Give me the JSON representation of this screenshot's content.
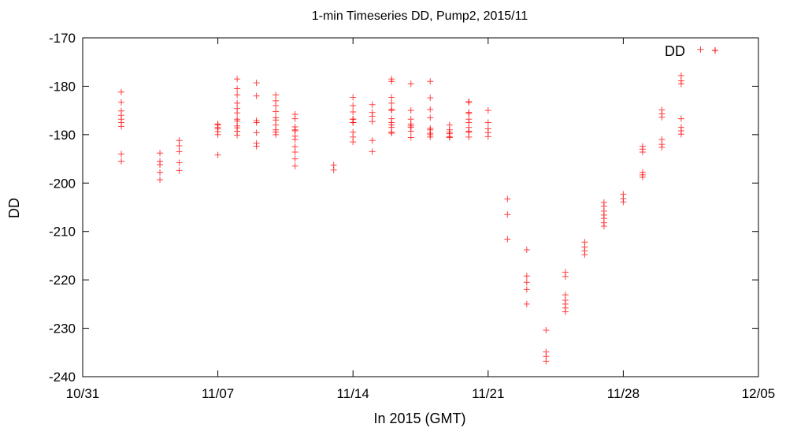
{
  "chart_data": {
    "type": "scatter",
    "title": "1-min Timeseries DD, Pump2, 2015/11",
    "xlabel": "In 2015 (GMT)",
    "ylabel": "DD",
    "x_axis_type": "date",
    "xlim": [
      "2015-10-31",
      "2015-12-05"
    ],
    "ylim": [
      -240,
      -170
    ],
    "x_ticks": [
      "10/31",
      "11/07",
      "11/14",
      "11/21",
      "11/28",
      "12/05"
    ],
    "y_ticks": [
      -170,
      -180,
      -190,
      -200,
      -210,
      -220,
      -230,
      -240
    ],
    "grid": false,
    "legend_position": "top-right",
    "series": [
      {
        "name": "DD",
        "color": "#ff0000",
        "marker": "plus",
        "points": [
          [
            "2015-11-02",
            -181.2
          ],
          [
            "2015-11-02",
            -183.3
          ],
          [
            "2015-11-02",
            -185.1
          ],
          [
            "2015-11-02",
            -186.0
          ],
          [
            "2015-11-02",
            -186.8
          ],
          [
            "2015-11-02",
            -187.5
          ],
          [
            "2015-11-02",
            -188.3
          ],
          [
            "2015-11-02",
            -194.0
          ],
          [
            "2015-11-02",
            -195.5
          ],
          [
            "2015-11-04",
            -193.8
          ],
          [
            "2015-11-04",
            -195.5
          ],
          [
            "2015-11-04",
            -196.2
          ],
          [
            "2015-11-04",
            -197.8
          ],
          [
            "2015-11-04",
            -199.3
          ],
          [
            "2015-11-05",
            -191.2
          ],
          [
            "2015-11-05",
            -192.3
          ],
          [
            "2015-11-05",
            -193.5
          ],
          [
            "2015-11-05",
            -195.8
          ],
          [
            "2015-11-05",
            -197.4
          ],
          [
            "2015-11-07",
            -187.8
          ],
          [
            "2015-11-07",
            -188.5
          ],
          [
            "2015-11-07",
            -189.4
          ],
          [
            "2015-11-07",
            -190.0
          ],
          [
            "2015-11-07",
            -188.0
          ],
          [
            "2015-11-07",
            -188.8
          ],
          [
            "2015-11-07",
            -194.2
          ],
          [
            "2015-11-08",
            -180.5
          ],
          [
            "2015-11-08",
            -183.5
          ],
          [
            "2015-11-08",
            -185.5
          ],
          [
            "2015-11-08",
            -187.2
          ],
          [
            "2015-11-08",
            -188.6
          ],
          [
            "2015-11-08",
            -189.3
          ],
          [
            "2015-11-08",
            -190.1
          ],
          [
            "2015-11-08",
            -178.5
          ],
          [
            "2015-11-08",
            -181.8
          ],
          [
            "2015-11-08",
            -184.6
          ],
          [
            "2015-11-08",
            -186.8
          ],
          [
            "2015-11-08",
            -188.2
          ],
          [
            "2015-11-09",
            -191.8
          ],
          [
            "2015-11-09",
            -192.4
          ],
          [
            "2015-11-09",
            -179.3
          ],
          [
            "2015-11-09",
            -182.0
          ],
          [
            "2015-11-09",
            -187.1
          ],
          [
            "2015-11-09",
            -187.5
          ],
          [
            "2015-11-09",
            -189.6
          ],
          [
            "2015-11-10",
            -181.8
          ],
          [
            "2015-11-10",
            -184.0
          ],
          [
            "2015-11-10",
            -186.5
          ],
          [
            "2015-11-10",
            -188.0
          ],
          [
            "2015-11-10",
            -189.5
          ],
          [
            "2015-11-10",
            -183.0
          ],
          [
            "2015-11-10",
            -185.2
          ],
          [
            "2015-11-10",
            -187.0
          ],
          [
            "2015-11-10",
            -189.0
          ],
          [
            "2015-11-10",
            -190.0
          ],
          [
            "2015-11-11",
            -185.8
          ],
          [
            "2015-11-11",
            -186.7
          ],
          [
            "2015-11-11",
            -188.4
          ],
          [
            "2015-11-11",
            -189.2
          ],
          [
            "2015-11-11",
            -190.3
          ],
          [
            "2015-11-11",
            -189.0
          ],
          [
            "2015-11-11",
            -191.0
          ],
          [
            "2015-11-11",
            -192.5
          ],
          [
            "2015-11-11",
            -193.6
          ],
          [
            "2015-11-11",
            -195.0
          ],
          [
            "2015-11-11",
            -196.5
          ],
          [
            "2015-11-13",
            -196.3
          ],
          [
            "2015-11-13",
            -197.3
          ],
          [
            "2015-11-14",
            -186.8
          ],
          [
            "2015-11-14",
            -187.5
          ],
          [
            "2015-11-14",
            -189.5
          ],
          [
            "2015-11-14",
            -190.5
          ],
          [
            "2015-11-14",
            -191.5
          ],
          [
            "2015-11-14",
            -182.3
          ],
          [
            "2015-11-14",
            -184.0
          ],
          [
            "2015-11-14",
            -185.3
          ],
          [
            "2015-11-14",
            -186.8
          ],
          [
            "2015-11-14",
            -187.5
          ],
          [
            "2015-11-15",
            -183.8
          ],
          [
            "2015-11-15",
            -185.4
          ],
          [
            "2015-11-15",
            -186.2
          ],
          [
            "2015-11-15",
            -187.3
          ],
          [
            "2015-11-15",
            -191.2
          ],
          [
            "2015-11-15",
            -193.5
          ],
          [
            "2015-11-16",
            -179.0
          ],
          [
            "2015-11-16",
            -183.5
          ],
          [
            "2015-11-16",
            -185.0
          ],
          [
            "2015-11-16",
            -187.5
          ],
          [
            "2015-11-16",
            -188.5
          ],
          [
            "2015-11-16",
            -189.5
          ],
          [
            "2015-11-16",
            -178.5
          ],
          [
            "2015-11-16",
            -182.3
          ],
          [
            "2015-11-16",
            -184.8
          ],
          [
            "2015-11-16",
            -186.7
          ],
          [
            "2015-11-16",
            -188.0
          ],
          [
            "2015-11-16",
            -189.7
          ],
          [
            "2015-11-17",
            -179.5
          ],
          [
            "2015-11-17",
            -186.8
          ],
          [
            "2015-11-17",
            -187.8
          ],
          [
            "2015-11-17",
            -188.5
          ],
          [
            "2015-11-17",
            -185.0
          ],
          [
            "2015-11-17",
            -188.2
          ],
          [
            "2015-11-17",
            -189.3
          ],
          [
            "2015-11-17",
            -190.6
          ],
          [
            "2015-11-18",
            -179.0
          ],
          [
            "2015-11-18",
            -182.4
          ],
          [
            "2015-11-18",
            -184.8
          ],
          [
            "2015-11-18",
            -186.5
          ],
          [
            "2015-11-18",
            -188.7
          ],
          [
            "2015-11-18",
            -190.0
          ],
          [
            "2015-11-18",
            -189.0
          ],
          [
            "2015-11-18",
            -189.7
          ],
          [
            "2015-11-18",
            -190.5
          ],
          [
            "2015-11-19",
            -188.0
          ],
          [
            "2015-11-19",
            -189.0
          ],
          [
            "2015-11-19",
            -189.8
          ],
          [
            "2015-11-19",
            -190.6
          ],
          [
            "2015-11-19",
            -189.5
          ],
          [
            "2015-11-19",
            -190.4
          ],
          [
            "2015-11-20",
            -183.3
          ],
          [
            "2015-11-20",
            -185.6
          ],
          [
            "2015-11-20",
            -187.5
          ],
          [
            "2015-11-20",
            -189.3
          ],
          [
            "2015-11-20",
            -190.5
          ],
          [
            "2015-11-20",
            -183.2
          ],
          [
            "2015-11-20",
            -185.4
          ],
          [
            "2015-11-20",
            -186.8
          ],
          [
            "2015-11-20",
            -188.5
          ],
          [
            "2015-11-20",
            -189.5
          ],
          [
            "2015-11-21",
            -185.0
          ],
          [
            "2015-11-21",
            -187.5
          ],
          [
            "2015-11-21",
            -188.8
          ],
          [
            "2015-11-21",
            -189.6
          ],
          [
            "2015-11-21",
            -190.4
          ],
          [
            "2015-11-22",
            -203.3
          ],
          [
            "2015-11-22",
            -206.5
          ],
          [
            "2015-11-22",
            -211.6
          ],
          [
            "2015-11-23",
            -213.8
          ],
          [
            "2015-11-23",
            -219.2
          ],
          [
            "2015-11-23",
            -220.5
          ],
          [
            "2015-11-23",
            -222.0
          ],
          [
            "2015-11-23",
            -225.0
          ],
          [
            "2015-11-24",
            -230.4
          ],
          [
            "2015-11-24",
            -234.9
          ],
          [
            "2015-11-24",
            -235.8
          ],
          [
            "2015-11-24",
            -236.8
          ],
          [
            "2015-11-25",
            -223.1
          ],
          [
            "2015-11-25",
            -224.2
          ],
          [
            "2015-11-25",
            -225.0
          ],
          [
            "2015-11-25",
            -225.8
          ],
          [
            "2015-11-25",
            -226.6
          ],
          [
            "2015-11-25",
            -218.4
          ],
          [
            "2015-11-25",
            -219.3
          ],
          [
            "2015-11-26",
            -212.2
          ],
          [
            "2015-11-26",
            -213.2
          ],
          [
            "2015-11-26",
            -214.0
          ],
          [
            "2015-11-26",
            -214.8
          ],
          [
            "2015-11-27",
            -204.0
          ],
          [
            "2015-11-27",
            -207.3
          ],
          [
            "2015-11-27",
            -208.2
          ],
          [
            "2015-11-27",
            -208.9
          ],
          [
            "2015-11-27",
            -204.8
          ],
          [
            "2015-11-27",
            -205.8
          ],
          [
            "2015-11-27",
            -206.6
          ],
          [
            "2015-11-28",
            -202.3
          ],
          [
            "2015-11-28",
            -203.2
          ],
          [
            "2015-11-28",
            -203.9
          ],
          [
            "2015-11-29",
            -197.8
          ],
          [
            "2015-11-29",
            -198.3
          ],
          [
            "2015-11-29",
            -198.8
          ],
          [
            "2015-11-29",
            -192.4
          ],
          [
            "2015-11-29",
            -193.0
          ],
          [
            "2015-11-29",
            -193.6
          ],
          [
            "2015-11-30",
            -191.0
          ],
          [
            "2015-11-30",
            -192.0
          ],
          [
            "2015-11-30",
            -192.6
          ],
          [
            "2015-11-30",
            -184.9
          ],
          [
            "2015-11-30",
            -185.7
          ],
          [
            "2015-11-30",
            -186.4
          ],
          [
            "2015-12-01",
            -186.7
          ],
          [
            "2015-12-01",
            -188.5
          ],
          [
            "2015-12-01",
            -189.2
          ],
          [
            "2015-12-01",
            -189.9
          ],
          [
            "2015-12-01",
            -177.8
          ],
          [
            "2015-12-01",
            -178.9
          ],
          [
            "2015-12-01",
            -179.5
          ],
          [
            "2015-12-02",
            -172.4
          ]
        ]
      }
    ]
  }
}
